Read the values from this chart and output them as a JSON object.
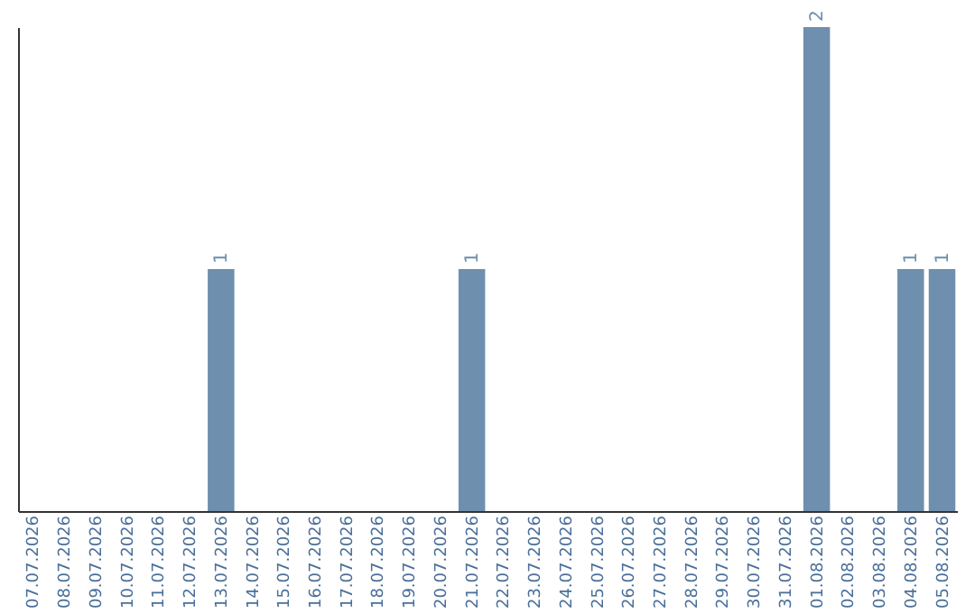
{
  "chart_data": {
    "type": "bar",
    "categories": [
      "07.07.2026",
      "08.07.2026",
      "09.07.2026",
      "10.07.2026",
      "11.07.2026",
      "12.07.2026",
      "13.07.2026",
      "14.07.2026",
      "15.07.2026",
      "16.07.2026",
      "17.07.2026",
      "18.07.2026",
      "19.07.2026",
      "20.07.2026",
      "21.07.2026",
      "22.07.2026",
      "23.07.2026",
      "24.07.2026",
      "25.07.2026",
      "26.07.2026",
      "27.07.2026",
      "28.07.2026",
      "29.07.2026",
      "30.07.2026",
      "31.07.2026",
      "01.08.2026",
      "02.08.2026",
      "03.08.2026",
      "04.08.2026",
      "05.08.2026"
    ],
    "values": [
      0,
      0,
      0,
      0,
      0,
      0,
      1,
      0,
      0,
      0,
      0,
      0,
      0,
      0,
      1,
      0,
      0,
      0,
      0,
      0,
      0,
      0,
      0,
      0,
      0,
      2,
      0,
      0,
      1,
      1
    ],
    "value_labels": [
      null,
      null,
      null,
      null,
      null,
      null,
      "1",
      null,
      null,
      null,
      null,
      null,
      null,
      null,
      "1",
      null,
      null,
      null,
      null,
      null,
      null,
      null,
      null,
      null,
      null,
      "2",
      null,
      null,
      "1",
      "1"
    ],
    "color": "#6f8fae",
    "ylim": [
      0,
      2
    ],
    "tick_labels": "x",
    "grid": false
  }
}
